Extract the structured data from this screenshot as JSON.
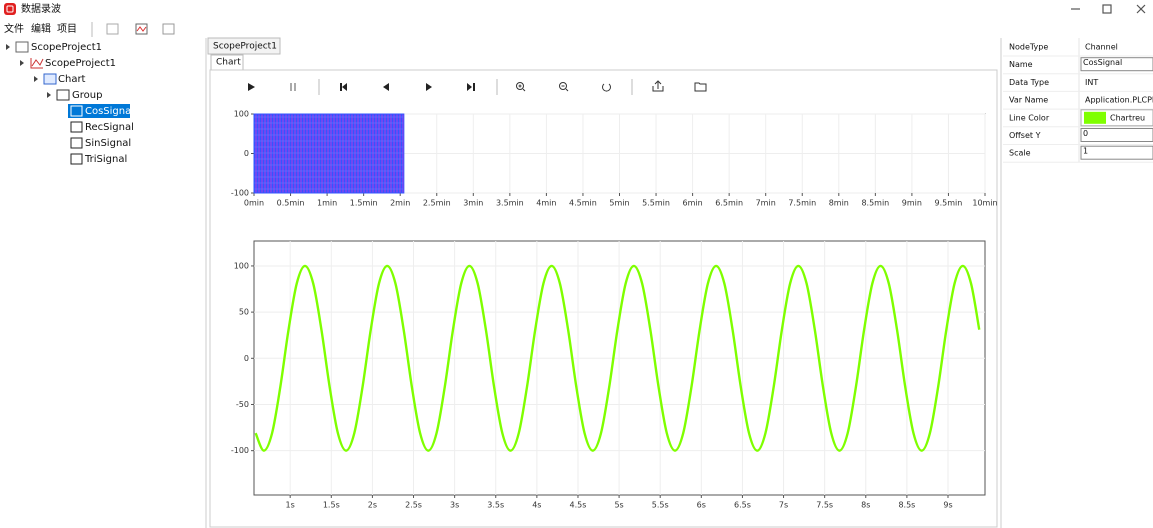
{
  "window": {
    "title": "数据录波"
  },
  "menu": [
    "文件",
    "编辑",
    "项目"
  ],
  "tree": [
    "ScopeProject1",
    "ScopeProject1",
    "Chart",
    "Group",
    "CosSignal",
    "RecSignal",
    "SinSignal",
    "TriSignal"
  ],
  "tabs": {
    "project": "ScopeProject1",
    "chart": "Chart"
  },
  "properties": [
    [
      "NodeType",
      "Channel"
    ],
    [
      "Name",
      "CosSignal"
    ],
    [
      "Data Type",
      "INT"
    ],
    [
      "Var Name",
      "Application.PLCPR"
    ],
    [
      "Line Color",
      "Chartreu"
    ],
    [
      "Offset Y",
      "0"
    ],
    [
      "Scale",
      "1"
    ]
  ],
  "chart_data": [
    {
      "type": "overview",
      "recorded_range": [
        0,
        2.05
      ],
      "color": "#3355ff",
      "xlim": [
        0,
        10
      ],
      "xticks": [
        {
          "value": 0,
          "label": "0min"
        },
        {
          "value": 0.5,
          "label": "0.5min"
        },
        {
          "value": 1,
          "label": "1min"
        },
        {
          "value": 1.5,
          "label": "1.5min"
        },
        {
          "value": 2,
          "label": "2min"
        },
        {
          "value": 2.5,
          "label": "2.5min"
        },
        {
          "value": 3,
          "label": "3min"
        },
        {
          "value": 3.5,
          "label": "3.5min"
        },
        {
          "value": 4,
          "label": "4min"
        },
        {
          "value": 4.5,
          "label": "4.5min"
        },
        {
          "value": 5,
          "label": "5min"
        },
        {
          "value": 5.5,
          "label": "5.5min"
        },
        {
          "value": 6,
          "label": "6min"
        },
        {
          "value": 6.5,
          "label": "6.5min"
        },
        {
          "value": 7,
          "label": "7min"
        },
        {
          "value": 7.5,
          "label": "7.5min"
        },
        {
          "value": 8,
          "label": "8min"
        },
        {
          "value": 8.5,
          "label": "8.5min"
        },
        {
          "value": 9,
          "label": "9min"
        },
        {
          "value": 9.5,
          "label": "9.5min"
        },
        {
          "value": 10,
          "label": "10min"
        }
      ],
      "ylim": [
        -100,
        100
      ],
      "yticks": [
        -100,
        0,
        100
      ],
      "grid": true
    },
    {
      "type": "line",
      "x": [
        0.58,
        0.68,
        0.78,
        0.88,
        0.98,
        1.08,
        1.18,
        1.28,
        1.38,
        1.48,
        1.58,
        1.68,
        1.78,
        1.88,
        1.98,
        2.08,
        2.18,
        2.28,
        2.38,
        2.48,
        2.58,
        2.68,
        2.78,
        2.88,
        2.98,
        3.08,
        3.18,
        3.28,
        3.38,
        3.48,
        3.58,
        3.68,
        3.78,
        3.88,
        3.98,
        4.08,
        4.18,
        4.28,
        4.38,
        4.48,
        4.58,
        4.68,
        4.78,
        4.88,
        4.98,
        5.08,
        5.18,
        5.28,
        5.38,
        5.48,
        5.58,
        5.68,
        5.78,
        5.88,
        5.98,
        6.08,
        6.18,
        6.28,
        6.38,
        6.48,
        6.58,
        6.68,
        6.78,
        6.88,
        6.98,
        7.08,
        7.18,
        7.28,
        7.38,
        7.48,
        7.58,
        7.68,
        7.78,
        7.88,
        7.98,
        8.08,
        8.18,
        8.28,
        8.38,
        8.48,
        8.58,
        8.68,
        8.78,
        8.88,
        8.98,
        9.08,
        9.18,
        9.28,
        9.38
      ],
      "series": [
        {
          "color": "#7fff00",
          "values": [
            -81,
            -100,
            -81,
            -31,
            31,
            81,
            100,
            81,
            31,
            -31,
            -81,
            -100,
            -81,
            -31,
            31,
            81,
            100,
            81,
            31,
            -31,
            -81,
            -100,
            -81,
            -31,
            31,
            81,
            100,
            81,
            31,
            -31,
            -81,
            -100,
            -81,
            -31,
            31,
            81,
            100,
            81,
            31,
            -31,
            -81,
            -100,
            -81,
            -31,
            31,
            81,
            100,
            81,
            31,
            -31,
            -81,
            -100,
            -81,
            -31,
            31,
            81,
            100,
            81,
            31,
            -31,
            -81,
            -100,
            -81,
            -31,
            31,
            81,
            100,
            81,
            31,
            -31,
            -81,
            -100,
            -81,
            -31,
            31,
            81,
            100,
            81,
            31,
            -31,
            -81,
            -100,
            -81,
            -31,
            31,
            81,
            100,
            81,
            31
          ]
        }
      ],
      "xlim": [
        0.56,
        9.45
      ],
      "xticks": [
        {
          "value": 1,
          "label": "1s"
        },
        {
          "value": 1.5,
          "label": "1.5s"
        },
        {
          "value": 2,
          "label": "2s"
        },
        {
          "value": 2.5,
          "label": "2.5s"
        },
        {
          "value": 3,
          "label": "3s"
        },
        {
          "value": 3.5,
          "label": "3.5s"
        },
        {
          "value": 4,
          "label": "4s"
        },
        {
          "value": 4.5,
          "label": "4.5s"
        },
        {
          "value": 5,
          "label": "5s"
        },
        {
          "value": 5.5,
          "label": "5.5s"
        },
        {
          "value": 6,
          "label": "6s"
        },
        {
          "value": 6.5,
          "label": "6.5s"
        },
        {
          "value": 7,
          "label": "7s"
        },
        {
          "value": 7.5,
          "label": "7.5s"
        },
        {
          "value": 8,
          "label": "8s"
        },
        {
          "value": 8.5,
          "label": "8.5s"
        },
        {
          "value": 9,
          "label": "9s"
        }
      ],
      "ylim": [
        -148,
        127
      ],
      "yticks": [
        -100,
        -50,
        0,
        50,
        100
      ],
      "grid": true
    }
  ]
}
